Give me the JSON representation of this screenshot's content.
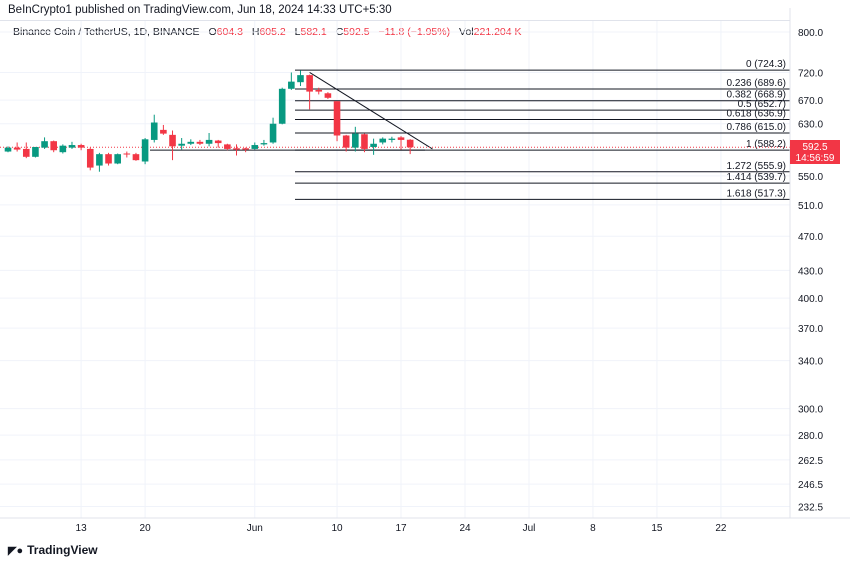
{
  "header": {
    "published": "BeInCrypto1 published on TradingView.com, Jun 18, 2024 14:33 UTC+5:30"
  },
  "legend": {
    "symbol": "Binance Coin / TetherUS, 1D, BINANCE",
    "o_label": "O",
    "o": "604.3",
    "h_label": "H",
    "h": "605.2",
    "l_label": "L",
    "l": "582.1",
    "c_label": "C",
    "c": "592.5",
    "change": "−11.8 (−1.95%)",
    "vol_label": "Vol",
    "vol": "221.204 K"
  },
  "price_badge": {
    "price": "592.5",
    "countdown": "14:56:59"
  },
  "footer": {
    "brand": "TradingView"
  },
  "colors": {
    "up": "#089981",
    "down": "#f23645",
    "grid": "#f0f3fa"
  },
  "chart_data": {
    "type": "candlestick",
    "scale": "log",
    "yticks": [
      "800.0",
      "720.0",
      "670.0",
      "630.0",
      "550.0",
      "510.0",
      "470.0",
      "430.0",
      "400.0",
      "370.0",
      "340.0",
      "300.0",
      "280.0",
      "262.5",
      "246.5",
      "232.5"
    ],
    "xticks": [
      {
        "label": "13",
        "day": 8
      },
      {
        "label": "20",
        "day": 15
      },
      {
        "label": "Jun",
        "day": 27
      },
      {
        "label": "10",
        "day": 36
      },
      {
        "label": "17",
        "day": 43
      },
      {
        "label": "24",
        "day": 50
      },
      {
        "label": "Jul",
        "day": 57
      },
      {
        "label": "8",
        "day": 64
      },
      {
        "label": "15",
        "day": 71
      },
      {
        "label": "22",
        "day": 78
      }
    ],
    "candles": [
      [
        586,
        594,
        585,
        592
      ],
      [
        592,
        600,
        586,
        589
      ],
      [
        590,
        600,
        576,
        578
      ],
      [
        578,
        593,
        577,
        593
      ],
      [
        592,
        608,
        590,
        602
      ],
      [
        602,
        603,
        585,
        588
      ],
      [
        585,
        597,
        583,
        595
      ],
      [
        592,
        601,
        590,
        596
      ],
      [
        596,
        598,
        588,
        592
      ],
      [
        590,
        592,
        558,
        562
      ],
      [
        565,
        584,
        556,
        582
      ],
      [
        582,
        584,
        565,
        568
      ],
      [
        568,
        583,
        567,
        582
      ],
      [
        583,
        586,
        577,
        582
      ],
      [
        582,
        584,
        572,
        573
      ],
      [
        571,
        607,
        567,
        605
      ],
      [
        604,
        645,
        600,
        632
      ],
      [
        620,
        628,
        612,
        614
      ],
      [
        612,
        619,
        573,
        594
      ],
      [
        595,
        607,
        589,
        598
      ],
      [
        598,
        605,
        596,
        601
      ],
      [
        601,
        604,
        596,
        598
      ],
      [
        598,
        615,
        594,
        604
      ],
      [
        603,
        604,
        592,
        599
      ],
      [
        597,
        598,
        588,
        590
      ],
      [
        591,
        597,
        580,
        589
      ],
      [
        591,
        592,
        585,
        589
      ],
      [
        590,
        600,
        589,
        596
      ],
      [
        597,
        604,
        595,
        599
      ],
      [
        600,
        640,
        598,
        630
      ],
      [
        630,
        692,
        629,
        690
      ],
      [
        690,
        720,
        688,
        703
      ],
      [
        702,
        724,
        695,
        715
      ],
      [
        715,
        716,
        654,
        685
      ],
      [
        688,
        692,
        680,
        685
      ],
      [
        682,
        684,
        672,
        674
      ],
      [
        668,
        668,
        602,
        611
      ],
      [
        611,
        612,
        586,
        592
      ],
      [
        592,
        625,
        586,
        614
      ],
      [
        613,
        614,
        585,
        590
      ],
      [
        593,
        606,
        581,
        598
      ],
      [
        600,
        608,
        597,
        606
      ],
      [
        604,
        609,
        600,
        606
      ],
      [
        608,
        610,
        589,
        604
      ],
      [
        604.3,
        605.2,
        582.1,
        592.5
      ]
    ],
    "fib_levels": [
      {
        "ratio": "0",
        "price": 724.3,
        "label": "0 (724.3)"
      },
      {
        "ratio": "0.236",
        "price": 689.6,
        "label": "0.236 (689.6)"
      },
      {
        "ratio": "0.382",
        "price": 668.9,
        "label": "0.382 (668.9)"
      },
      {
        "ratio": "0.5",
        "price": 652.7,
        "label": "0.5 (652.7)"
      },
      {
        "ratio": "0.618",
        "price": 636.9,
        "label": "0.618 (636.9)"
      },
      {
        "ratio": "0.786",
        "price": 615.0,
        "label": "0.786 (615.0)"
      },
      {
        "ratio": "1",
        "price": 588.2,
        "label": "1 (588.2)"
      },
      {
        "ratio": "1.272",
        "price": 555.9,
        "label": "1.272 (555.9)"
      },
      {
        "ratio": "1.414",
        "price": 539.7,
        "label": "1.414 (539.7)"
      },
      {
        "ratio": "1.618",
        "price": 517.3,
        "label": "1.618 (517.3)"
      }
    ],
    "trendline": [
      {
        "day": 33,
        "price": 720
      },
      {
        "day": 46,
        "price": 590
      }
    ],
    "last_price": 592.5
  }
}
